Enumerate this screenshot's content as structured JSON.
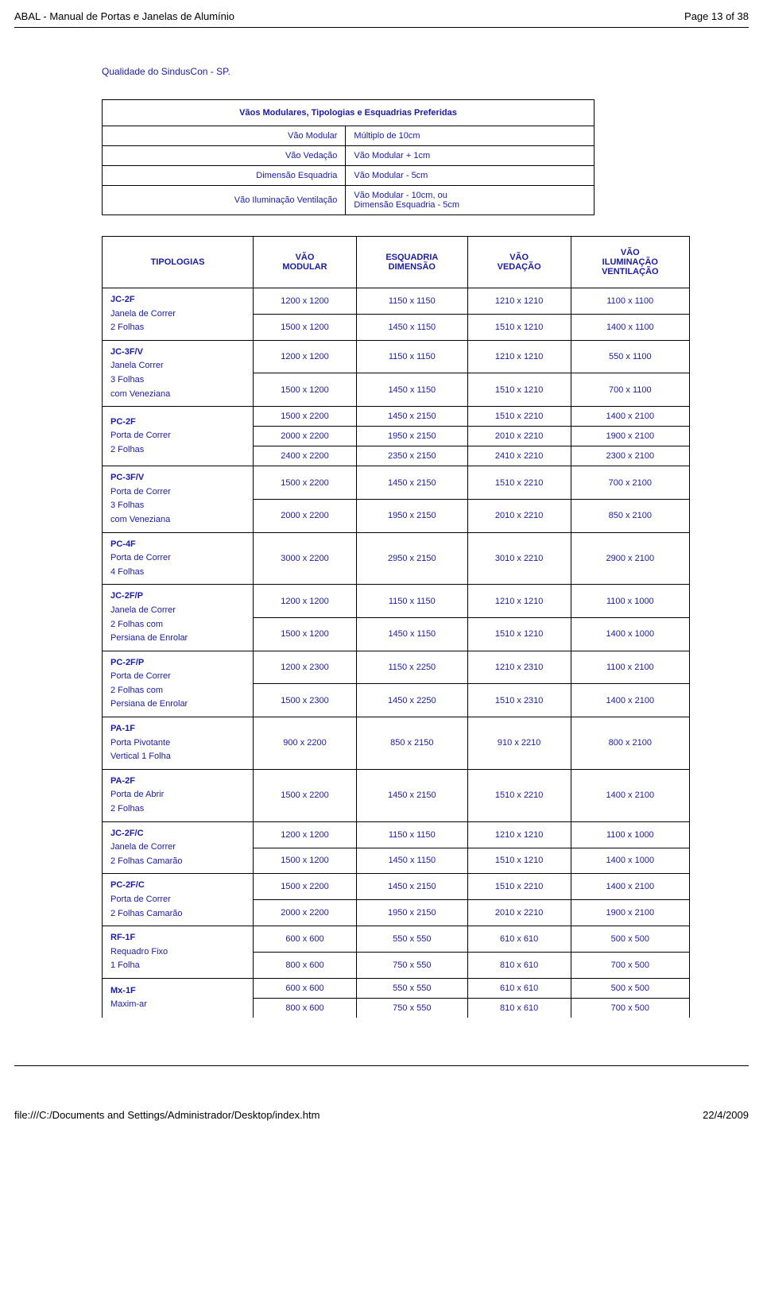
{
  "header": {
    "title": "ABAL - Manual de Portas e Janelas de Alumínio",
    "page": "Page 13 of 38"
  },
  "footer": {
    "path": "file:///C:/Documents and Settings/Administrador/Desktop/index.htm",
    "date": "22/4/2009"
  },
  "quality_line": "Qualidade do SindusCon - SP.",
  "mod_table": {
    "caption": "Vãos Modulares, Tipologias e Esquadrias Preferidas",
    "rows": [
      {
        "l": "Vão Modular",
        "r": "Múltiplo de 10cm"
      },
      {
        "l": "Vão Vedação",
        "r": "Vão Modular + 1cm"
      },
      {
        "l": "Dimensão Esquadria",
        "r": "Vão Modular - 5cm"
      },
      {
        "l": "Vão Iluminação Ventilação",
        "r": "Vão Modular - 10cm, ou\nDimensão Esquadria - 5cm"
      }
    ]
  },
  "main_table": {
    "columns": [
      "TIPOLOGIAS",
      "VÃO\nMODULAR",
      "ESQUADRIA\nDIMENSÃO",
      "VÃO\nVEDAÇÃO",
      "VÃO\nILUMINAÇÃO\nVENTILAÇÃO"
    ],
    "groups": [
      {
        "code": "JC-2F",
        "desc": [
          "Janela de Correr",
          "2 Folhas"
        ],
        "rows": [
          [
            "1200 x 1200",
            "1150 x 1150",
            "1210 x 1210",
            "1100 x 1100"
          ],
          [
            "1500 x 1200",
            "1450 x 1150",
            "1510 x 1210",
            "1400 x 1100"
          ]
        ]
      },
      {
        "code": "JC-3F/V",
        "desc": [
          "Janela Correr",
          "3 Folhas",
          "com Veneziana"
        ],
        "rows": [
          [
            "1200 x 1200",
            "1150 x 1150",
            "1210 x 1210",
            "550 x 1100"
          ],
          [
            "1500 x 1200",
            "1450 x 1150",
            "1510 x 1210",
            "700 x 1100"
          ]
        ]
      },
      {
        "code": "PC-2F",
        "desc": [
          "Porta de Correr",
          "2 Folhas"
        ],
        "rows": [
          [
            "1500 x 2200",
            "1450 x 2150",
            "1510 x 2210",
            "1400 x 2100"
          ],
          [
            "2000 x 2200",
            "1950 x 2150",
            "2010 x 2210",
            "1900 x 2100"
          ],
          [
            "2400 x 2200",
            "2350 x 2150",
            "2410 x 2210",
            "2300 x 2100"
          ]
        ]
      },
      {
        "code": "PC-3F/V",
        "desc": [
          "Porta de Correr",
          "3 Folhas",
          "com Veneziana"
        ],
        "rows": [
          [
            "1500 x 2200",
            "1450 x 2150",
            "1510 x 2210",
            "700 x 2100"
          ],
          [
            "2000 x 2200",
            "1950 x 2150",
            "2010 x 2210",
            "850 x 2100"
          ]
        ]
      },
      {
        "code": "PC-4F",
        "desc": [
          "Porta de Correr",
          "4 Folhas"
        ],
        "rows": [
          [
            "3000 x 2200",
            "2950 x 2150",
            "3010 x 2210",
            "2900 x 2100"
          ]
        ]
      },
      {
        "code": "JC-2F/P",
        "desc": [
          "Janela de Correr",
          "2 Folhas com",
          "Persiana de Enrolar"
        ],
        "rows": [
          [
            "1200 x 1200",
            "1150 x 1150",
            "1210 x 1210",
            "1100 x 1000"
          ],
          [
            "1500 x 1200",
            "1450 x 1150",
            "1510 x 1210",
            "1400 x 1000"
          ]
        ]
      },
      {
        "code": "PC-2F/P",
        "desc": [
          "Porta de Correr",
          "2 Folhas com",
          "Persiana de Enrolar"
        ],
        "rows": [
          [
            "1200 x 2300",
            "1150 x 2250",
            "1210 x 2310",
            "1100 x 2100"
          ],
          [
            "1500 x 2300",
            "1450 x 2250",
            "1510 x 2310",
            "1400 x 2100"
          ]
        ]
      },
      {
        "code": "PA-1F",
        "desc": [
          "Porta Pivotante",
          "Vertical 1 Folha"
        ],
        "rows": [
          [
            "900 x 2200",
            "850 x 2150",
            "910 x 2210",
            "800 x 2100"
          ]
        ]
      },
      {
        "code": "PA-2F",
        "desc": [
          "Porta de Abrir",
          "2 Folhas"
        ],
        "rows": [
          [
            "1500 x 2200",
            "1450 x 2150",
            "1510 x 2210",
            "1400 x 2100"
          ]
        ]
      },
      {
        "code": "JC-2F/C",
        "desc": [
          "Janela de Correr",
          "2 Folhas Camarão"
        ],
        "rows": [
          [
            "1200 x 1200",
            "1150 x 1150",
            "1210 x 1210",
            "1100 x 1000"
          ],
          [
            "1500 x 1200",
            "1450 x 1150",
            "1510 x 1210",
            "1400 x 1000"
          ]
        ]
      },
      {
        "code": "PC-2F/C",
        "desc": [
          "Porta de Correr",
          "2 Folhas Camarão"
        ],
        "rows": [
          [
            "1500 x 2200",
            "1450 x 2150",
            "1510 x 2210",
            "1400 x 2100"
          ],
          [
            "2000 x 2200",
            "1950 x 2150",
            "2010 x 2210",
            "1900 x 2100"
          ]
        ]
      },
      {
        "code": "RF-1F",
        "desc": [
          "Requadro Fixo",
          "1 Folha"
        ],
        "rows": [
          [
            "600 x 600",
            "550 x 550",
            "610 x 610",
            "500 x 500"
          ],
          [
            "800 x 600",
            "750 x 550",
            "810 x 610",
            "700 x 500"
          ]
        ]
      },
      {
        "code": "Mx-1F",
        "desc": [
          "Maxim-ar"
        ],
        "rows": [
          [
            "600 x 600",
            "550 x 550",
            "610 x 610",
            "500 x 500"
          ],
          [
            "800 x 600",
            "750 x 550",
            "810 x 610",
            "700 x 500"
          ]
        ]
      }
    ]
  }
}
